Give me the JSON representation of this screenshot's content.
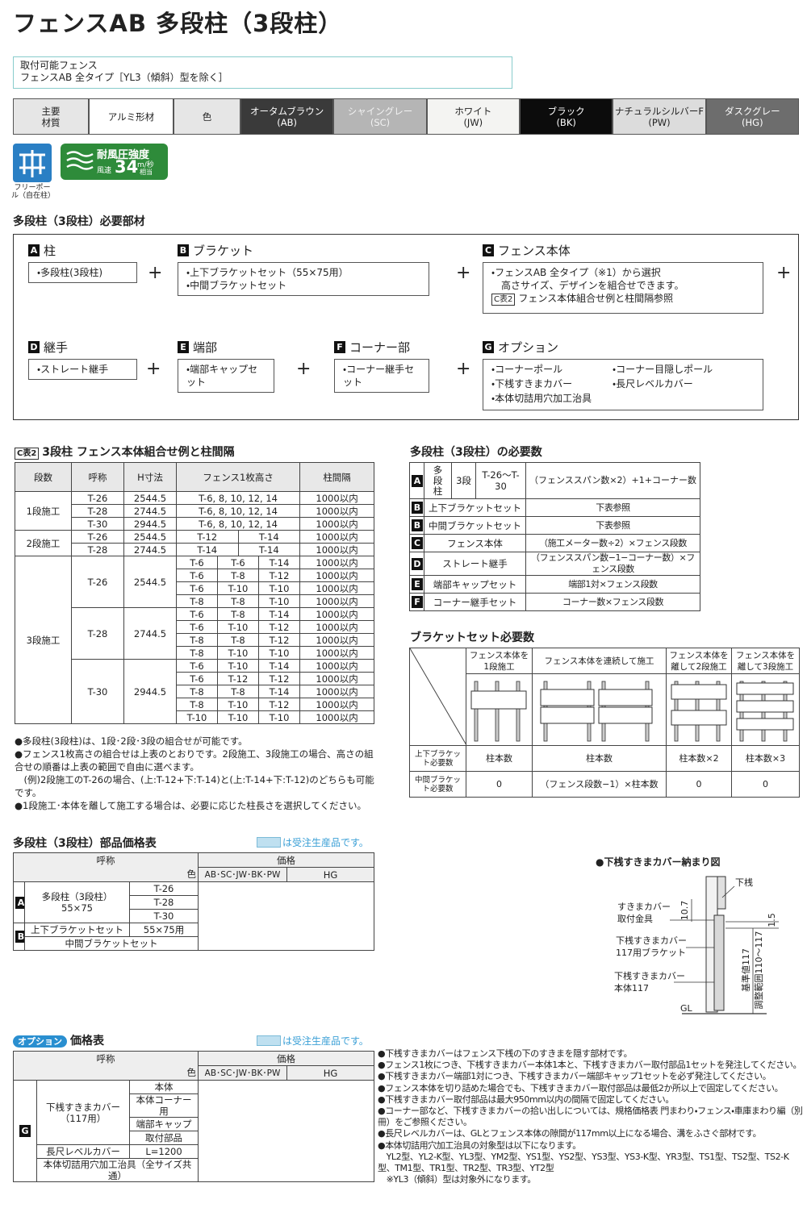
{
  "title": "フェンスAB 多段柱（3段柱）",
  "applicable": {
    "label": "取付可能フェンス",
    "text": "フェンスAB 全タイプ［YL3（傾斜）型を除く］"
  },
  "materials": {
    "main_label": "主要材質",
    "material": "アルミ形材",
    "color_label": "色",
    "colors": [
      {
        "name": "オータムブラウン",
        "code": "(AB)",
        "color": "#3a3a3a",
        "text_color": "#ffffff"
      },
      {
        "name": "シャイングレー",
        "code": "(SC)",
        "color": "#b5b5b5",
        "text_color": "#f2f2f2"
      },
      {
        "name": "ホワイト",
        "code": "(JW)",
        "color": "#f4f4f2",
        "text_color": "#222222"
      },
      {
        "name": "ブラック",
        "code": "(BK)",
        "color": "#0c0c0c",
        "text_color": "#ffffff"
      },
      {
        "name": "ナチュラルシルバーF",
        "code": "(PW)",
        "color": "#dcdcdc",
        "text_color": "#222222"
      },
      {
        "name": "ダスクグレー",
        "code": "(HG)",
        "color": "#6d6d6d",
        "text_color": "#ffffff"
      }
    ]
  },
  "icons": {
    "free_pole": "フリーポール（自在柱）",
    "wind_label": "耐風圧強度",
    "wind_speed_label": "風速",
    "wind_value": "34",
    "wind_unit": "m/秒",
    "wind_note": "相当"
  },
  "parts": {
    "title": "多段柱（3段柱）必要部材",
    "plus": "+",
    "groups": [
      {
        "letter": "A",
        "name": "柱",
        "items": [
          "・多段柱(3段柱)"
        ]
      },
      {
        "letter": "B",
        "name": "ブラケット",
        "items": [
          "・上下ブラケットセット（55×75用）",
          "・中間ブラケットセット"
        ]
      },
      {
        "letter": "C",
        "name": "フェンス本体",
        "items": [
          "・フェンスAB 全タイプ（※1）から選択",
          "　高さサイズ、デザインを組合せできます。"
        ],
        "ref_tag": "C表2",
        "ref_text": "フェンス本体組合せ例と柱間隔参照"
      },
      {
        "letter": "D",
        "name": "継手",
        "items": [
          "・ストレート継手"
        ]
      },
      {
        "letter": "E",
        "name": "端部",
        "items": [
          "・端部キャップセット"
        ]
      },
      {
        "letter": "F",
        "name": "コーナー部",
        "items": [
          "・コーナー継手セット"
        ]
      },
      {
        "letter": "G",
        "name": "オプション",
        "items": [
          "・コーナーポール",
          "・コーナー目隠しポール",
          "・下桟すきまカバー",
          "・長尺レベルカバー",
          "・本体切詰用穴加工治具"
        ]
      }
    ]
  },
  "c_table": {
    "tag": "C表2",
    "title": "3段柱 フェンス本体組合せ例と柱間隔",
    "headers": [
      "段数",
      "呼称",
      "H寸法",
      "フェンス1枚高さ",
      "柱間隔"
    ],
    "groups": [
      {
        "label": "1段施工",
        "subgroups": [
          {
            "name": "T-26",
            "h": 2544.5,
            "rows": [
              [
                "T-6, 8, 10, 12, 14",
                "1000以内"
              ]
            ]
          },
          {
            "name": "T-28",
            "h": 2744.5,
            "rows": [
              [
                "T-6, 8, 10, 12, 14",
                "1000以内"
              ]
            ]
          },
          {
            "name": "T-30",
            "h": 2944.5,
            "rows": [
              [
                "T-6, 8, 10, 12, 14",
                "1000以内"
              ]
            ]
          }
        ]
      },
      {
        "label": "2段施工",
        "subgroups": [
          {
            "name": "T-26",
            "h": 2544.5,
            "rows": [
              [
                "T-12",
                "T-14",
                "1000以内"
              ]
            ]
          },
          {
            "name": "T-28",
            "h": 2744.5,
            "rows": [
              [
                "T-14",
                "T-14",
                "1000以内"
              ]
            ]
          }
        ]
      },
      {
        "label": "3段施工",
        "subgroups": [
          {
            "name": "T-26",
            "h": 2544.5,
            "rows": [
              [
                "T-6",
                "T-6",
                "T-14",
                "1000以内"
              ],
              [
                "T-6",
                "T-8",
                "T-12",
                "1000以内"
              ],
              [
                "T-6",
                "T-10",
                "T-10",
                "1000以内"
              ],
              [
                "T-8",
                "T-8",
                "T-10",
                "1000以内"
              ]
            ]
          },
          {
            "name": "T-28",
            "h": 2744.5,
            "rows": [
              [
                "T-6",
                "T-8",
                "T-14",
                "1000以内"
              ],
              [
                "T-6",
                "T-10",
                "T-12",
                "1000以内"
              ],
              [
                "T-8",
                "T-8",
                "T-12",
                "1000以内"
              ],
              [
                "T-8",
                "T-10",
                "T-10",
                "1000以内"
              ]
            ]
          },
          {
            "name": "T-30",
            "h": 2944.5,
            "rows": [
              [
                "T-6",
                "T-10",
                "T-14",
                "1000以内"
              ],
              [
                "T-6",
                "T-12",
                "T-12",
                "1000以内"
              ],
              [
                "T-8",
                "T-8",
                "T-14",
                "1000以内"
              ],
              [
                "T-8",
                "T-10",
                "T-12",
                "1000以内"
              ],
              [
                "T-10",
                "T-10",
                "T-10",
                "1000以内"
              ]
            ]
          }
        ]
      }
    ]
  },
  "combination_notes": [
    "●多段柱(3段柱)は、1段･2段･3段の組合せが可能です。",
    "●フェンス1枚高さの組合せは上表のとおりです。2段施工、3段施工の場合、高さの組合せの順番は上表の範囲で自由に選べます。",
    "　(例)2段施工のT-26の場合、(上:T-12+下:T-14)と(上:T-14+下:T-12)のどちらも可能です。",
    "●1段施工･本体を離して施工する場合は、必要に応じた柱長さを選択してください。"
  ],
  "qty_table": {
    "title": "多段柱（3段柱）の必要数",
    "rows": [
      {
        "letter": "A",
        "cells": [
          "多段柱",
          "3段",
          "T-26～T-30",
          "（フェンススパン数×2）+1+コーナー数"
        ]
      },
      {
        "letter": "B",
        "cells": [
          "上下ブラケットセット",
          "下表参照"
        ]
      },
      {
        "letter": "B",
        "cells": [
          "中間ブラケットセット",
          "下表参照"
        ]
      },
      {
        "letter": "C",
        "cells": [
          "フェンス本体",
          "（施工メーター数÷2）×フェンス段数"
        ]
      },
      {
        "letter": "D",
        "cells": [
          "ストレート継手",
          "（フェンススパン数−1−コーナー数）×フェンス段数"
        ]
      },
      {
        "letter": "E",
        "cells": [
          "端部キャップセット",
          "端部1対×フェンス段数"
        ]
      },
      {
        "letter": "F",
        "cells": [
          "コーナー継手セット",
          "コーナー数×フェンス段数"
        ]
      }
    ]
  },
  "bracket_table": {
    "title": "ブラケットセット必要数",
    "headers": [
      "フェンス本体を1段施工",
      "フェンス本体を連続して施工",
      "フェンス本体を離して2段施工",
      "フェンス本体を離して3段施工"
    ],
    "rows": [
      {
        "label": "上下ブラケット必要数",
        "cells": [
          "柱本数",
          "柱本数",
          "柱本数×2",
          "柱本数×3"
        ]
      },
      {
        "label": "中間ブラケット必要数",
        "cells": [
          0,
          "（フェンス段数−1）×柱本数",
          0,
          0
        ]
      }
    ]
  },
  "price_table": {
    "title": "多段柱（3段柱）部品価格表",
    "note": "は受注生産品です。",
    "headers": {
      "name": "呼称",
      "price": "価格",
      "color": "色",
      "group1": "AB･SC･JW･BK･PW",
      "group2": "HG"
    },
    "part_a": {
      "letter": "A",
      "name": "多段柱（3段柱）",
      "spec": "55×75",
      "sizes": [
        "T-26",
        "T-28",
        "T-30"
      ]
    },
    "part_b": {
      "letter": "B",
      "items": [
        {
          "name": "上下ブラケットセット",
          "size": "55×75用"
        },
        {
          "name": "中間ブラケットセット"
        }
      ]
    }
  },
  "gap_diagram": {
    "title": "●下桟すきまカバー納まり図",
    "rail": "下桟",
    "bracket_fitting": [
      "すきまカバー",
      "取付金具"
    ],
    "dim_top": 10.7,
    "dim_gap": 1.5,
    "bracket": [
      "下桟すきまカバー",
      "117用ブラケット"
    ],
    "body": [
      "下桟すきまカバー",
      "本体117"
    ],
    "standard": "基準値117",
    "range": "調整範囲110～117",
    "gl": "GL"
  },
  "option_table": {
    "tag": "オプション",
    "title": "価格表",
    "note": "は受注生産品です。",
    "headers": {
      "name": "呼称",
      "price": "価格",
      "color": "色",
      "group1": "AB･SC･JW･BK･PW",
      "group2": "HG"
    },
    "letter": "G",
    "cover": {
      "name": "下桟すきまカバー（117用）",
      "sizes": [
        "本体",
        "本体コーナー用",
        "端部キャップ",
        "取付部品"
      ]
    },
    "level": {
      "name": "長尺レベルカバー",
      "size": "L=1200"
    },
    "jig": {
      "name": "本体切詰用穴加工治具（全サイズ共通）"
    }
  },
  "option_notes": [
    "●下桟すきまカバーはフェンス下桟の下のすきまを隠す部材です。",
    "●フェンス1枚につき、下桟すきまカバー本体1本と、下桟すきまカバー取付部品1セットを発注してください。",
    "●下桟すきまカバー端部1対につき、下桟すきまカバー端部キャップ1セットを必ず発注してください。",
    "●フェンス本体を切り詰めた場合でも、下桟すきまカバー取付部品は最低2か所以上で固定してください。",
    "●下桟すきまカバー取付部品は最大950mm以内の間隔で固定してください。",
    "●コーナー部など、下桟すきまカバーの拾い出しについては、規格価格表 門まわり・フェンス・車庫まわり編（別冊）をご参照ください。",
    "●長尺レベルカバーは、GLとフェンス本体の隙間が117mm以上になる場合、溝をふさぐ部材です。",
    "●本体切詰用穴加工治具の対象型は以下になります。",
    "　YL2型、YL2-K型、YL3型、YM2型、YS1型、YS2型、YS3型、YS3-K型、YR3型、TS1型、TS2型、TS2-K型、TM1型、TR1型、TR2型、TR3型、YT2型",
    "　※YL3（傾斜）型は対象外になります。"
  ]
}
